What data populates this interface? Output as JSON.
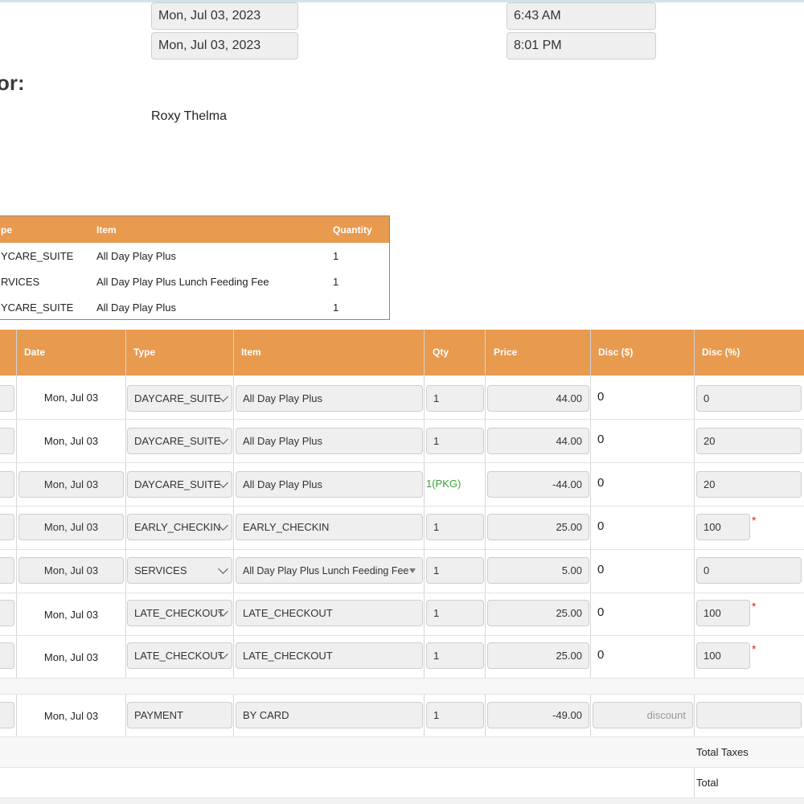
{
  "header": {
    "start_date": "Mon, Jul 03, 2023",
    "end_date": "Mon, Jul 03, 2023",
    "start_time": "6:43 AM",
    "end_time": "8:01 PM",
    "heading_fragment": "or:",
    "customer_name": "Roxy Thelma"
  },
  "package_table": {
    "columns": [
      "pe",
      "Item",
      "Quantity"
    ],
    "rows": [
      {
        "type": "YCARE_SUITE",
        "item": "All Day Play Plus",
        "qty": "1"
      },
      {
        "type": "RVICES",
        "item": "All Day Play Plus Lunch Feeding Fee",
        "qty": "1"
      },
      {
        "type": "YCARE_SUITE",
        "item": "All Day Play Plus",
        "qty": "1"
      }
    ]
  },
  "line_items": {
    "columns": [
      "Date",
      "Type",
      "Item",
      "Qty",
      "Price",
      "Disc ($)",
      "Disc (%)"
    ],
    "rows": [
      {
        "date": "Mon, Jul 03",
        "type": "DAYCARE_SUITE",
        "item": "All Day Play Plus",
        "qty": "1",
        "price": "44.00",
        "disc_amt": "0",
        "disc_pct": "0"
      },
      {
        "date": "Mon, Jul 03",
        "type": "DAYCARE_SUITE",
        "item": "All Day Play Plus",
        "qty": "1",
        "price": "44.00",
        "disc_amt": "0",
        "disc_pct": "20"
      },
      {
        "date": "Mon, Jul 03",
        "type": "DAYCARE_SUITE",
        "item": "All Day Play Plus",
        "qty": "1(PKG)",
        "price": "-44.00",
        "disc_amt": "0",
        "disc_pct": "20"
      },
      {
        "date": "Mon, Jul 03",
        "type": "EARLY_CHECKIN",
        "item": "EARLY_CHECKIN",
        "qty": "1",
        "price": "25.00",
        "disc_amt": "0",
        "disc_pct": "100"
      },
      {
        "date": "Mon, Jul 03",
        "type": "SERVICES",
        "item": "All Day Play Plus Lunch Feeding Fee",
        "qty": "1",
        "price": "5.00",
        "disc_amt": "0",
        "disc_pct": "0"
      },
      {
        "date": "Mon, Jul 03",
        "type": "LATE_CHECKOUT",
        "item": "LATE_CHECKOUT",
        "qty": "1",
        "price": "25.00",
        "disc_amt": "0",
        "disc_pct": "100"
      },
      {
        "date": "Mon, Jul 03",
        "type": "LATE_CHECKOUT",
        "item": "LATE_CHECKOUT",
        "qty": "1",
        "price": "25.00",
        "disc_amt": "0",
        "disc_pct": "100"
      }
    ],
    "required_marker": "*",
    "payment": {
      "date": "Mon, Jul 03",
      "type": "PAYMENT",
      "item": "BY CARD",
      "qty": "1",
      "price": "-49.00",
      "discount_placeholder": "discount",
      "disc_pct": ""
    },
    "totals": {
      "taxes_label": "Total Taxes",
      "total_label": "Total"
    }
  }
}
